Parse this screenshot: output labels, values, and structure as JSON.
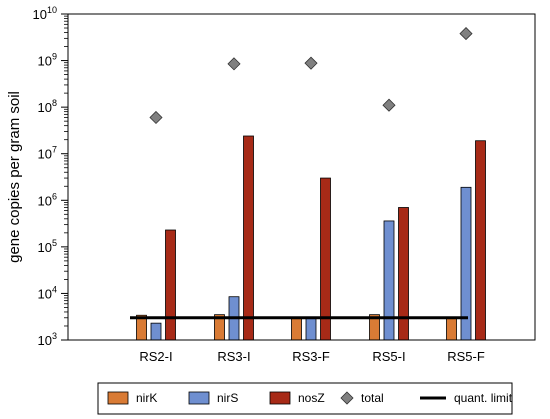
{
  "chart_data": {
    "type": "bar",
    "ylabel": "gene copies per gram soil",
    "yscale": "log",
    "ylim": [
      1000,
      10000000000
    ],
    "categories": [
      "RS2-I",
      "RS3-I",
      "RS3-F",
      "RS5-I",
      "RS5-F"
    ],
    "series": [
      {
        "name": "nirK",
        "color": "#d97b35",
        "values": [
          3400,
          3500,
          3000,
          3500,
          3000
        ]
      },
      {
        "name": "nirS",
        "color": "#6f8fd0",
        "values": [
          2300,
          8500,
          3000,
          360000,
          1900000
        ]
      },
      {
        "name": "nosZ",
        "color": "#a72a17",
        "values": [
          230000,
          24000000,
          3000000,
          700000,
          19000000
        ]
      }
    ],
    "total": {
      "name": "total",
      "marker": "diamond",
      "color": "#808080",
      "values": [
        60000000,
        850000000,
        880000000,
        110000000,
        3800000000
      ]
    },
    "quant_limit": {
      "name": "quant. limit",
      "value": 3000,
      "color": "#000000"
    },
    "y_ticks": [
      {
        "value": 1000,
        "base": "10",
        "exp": "3"
      },
      {
        "value": 10000,
        "base": "10",
        "exp": "4"
      },
      {
        "value": 100000,
        "base": "10",
        "exp": "5"
      },
      {
        "value": 1000000,
        "base": "10",
        "exp": "6"
      },
      {
        "value": 10000000,
        "base": "10",
        "exp": "7"
      },
      {
        "value": 100000000,
        "base": "10",
        "exp": "8"
      },
      {
        "value": 1000000000,
        "base": "10",
        "exp": "9"
      },
      {
        "value": 10000000000,
        "base": "10",
        "exp": "10"
      }
    ],
    "legend": {
      "position": "bottom",
      "items": [
        {
          "label": "nirK",
          "kind": "bar",
          "color": "#d97b35"
        },
        {
          "label": "nirS",
          "kind": "bar",
          "color": "#6f8fd0"
        },
        {
          "label": "nosZ",
          "kind": "bar",
          "color": "#a72a17"
        },
        {
          "label": "total",
          "kind": "diamond",
          "color": "#808080"
        },
        {
          "label": "quant. limit",
          "kind": "line",
          "color": "#000000"
        }
      ]
    },
    "grid": false
  }
}
